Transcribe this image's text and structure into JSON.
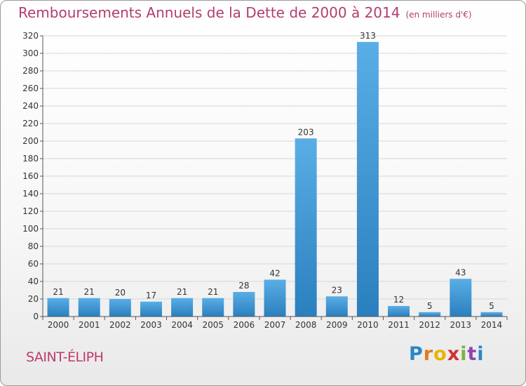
{
  "header": {
    "title": "Remboursements Annuels de la Dette de 2000 à 2014",
    "unit": "(en milliers d'€)"
  },
  "footer": {
    "commune": "SAINT-ÉLIPH",
    "brand": "Proxiti"
  },
  "colors": {
    "bar_light": "#5aaee6",
    "bar_dark": "#2a7fbe",
    "title": "#b23d6e",
    "grid": "#d6d6d6",
    "axis": "#555555"
  },
  "chart_data": {
    "type": "bar",
    "title": "Remboursements Annuels de la Dette de 2000 à 2014",
    "categories": [
      "2000",
      "2001",
      "2002",
      "2003",
      "2004",
      "2005",
      "2006",
      "2007",
      "2008",
      "2009",
      "2010",
      "2011",
      "2012",
      "2013",
      "2014"
    ],
    "values": [
      21,
      21,
      20,
      17,
      21,
      21,
      28,
      42,
      203,
      23,
      313,
      12,
      5,
      43,
      5
    ],
    "ylim": [
      0,
      320
    ],
    "yticks": [
      0,
      20,
      40,
      60,
      80,
      100,
      120,
      140,
      160,
      180,
      200,
      220,
      240,
      260,
      280,
      300,
      320
    ],
    "grid": true,
    "legend": "none"
  }
}
